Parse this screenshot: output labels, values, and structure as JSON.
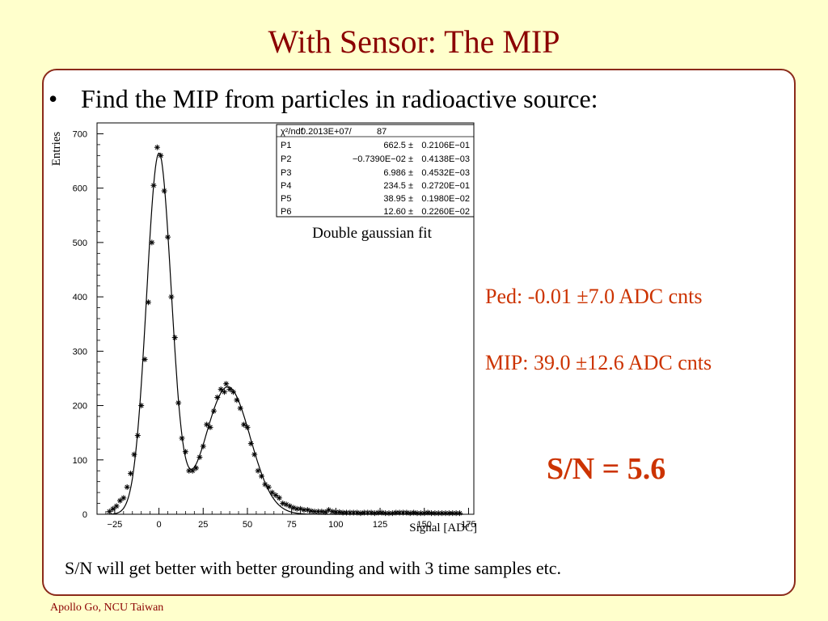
{
  "slide": {
    "title": "With Sensor: The MIP",
    "bullet": "Find the MIP from particles in radioactive source:",
    "ped": "Ped:  -0.01 ±7.0 ADC cnts",
    "mip": "MIP: 39.0 ±12.6 ADC cnts",
    "sn": "S/N = 5.6",
    "note": "S/N will get better with better grounding  and with 3 time samples etc.",
    "footer": "Apollo Go, NCU Taiwan"
  },
  "chart_data": {
    "type": "scatter",
    "xlabel": "Signal [ADC]",
    "ylabel": "Entries",
    "xlim": [
      -35,
      178
    ],
    "ylim": [
      0,
      720
    ],
    "xticks": [
      -25,
      0,
      25,
      50,
      75,
      100,
      125,
      150,
      175
    ],
    "yticks": [
      0,
      100,
      200,
      300,
      400,
      500,
      600,
      700
    ],
    "annotation": "Double gaussian fit",
    "fit_box": {
      "header": [
        "χ²/ndf",
        "0.2013E+07/",
        "87"
      ],
      "rows": [
        {
          "name": "P1",
          "value": "662.5 ±",
          "error": "0.2106E−01"
        },
        {
          "name": "P2",
          "value": "−0.7390E−02 ±",
          "error": "0.4138E−03"
        },
        {
          "name": "P3",
          "value": "6.986 ±",
          "error": "0.4532E−03"
        },
        {
          "name": "P4",
          "value": "234.5 ±",
          "error": "0.2720E−01"
        },
        {
          "name": "P5",
          "value": "38.95 ±",
          "error": "0.1980E−02"
        },
        {
          "name": "P6",
          "value": "12.60 ±",
          "error": "0.2260E−02"
        }
      ]
    },
    "fit_params": {
      "p1": 662.5,
      "p2": -0.0074,
      "p3": 6.986,
      "p4": 234.5,
      "p5": 38.95,
      "p6": 12.6
    },
    "points": [
      [
        -28,
        5
      ],
      [
        -26,
        10
      ],
      [
        -24,
        15
      ],
      [
        -22,
        25
      ],
      [
        -20,
        30
      ],
      [
        -18,
        50
      ],
      [
        -16,
        75
      ],
      [
        -14,
        110
      ],
      [
        -12,
        145
      ],
      [
        -10,
        200
      ],
      [
        -8,
        285
      ],
      [
        -6,
        390
      ],
      [
        -4,
        500
      ],
      [
        -3,
        605
      ],
      [
        -1,
        675
      ],
      [
        1,
        660
      ],
      [
        3,
        595
      ],
      [
        5,
        510
      ],
      [
        7,
        400
      ],
      [
        9,
        325
      ],
      [
        11,
        205
      ],
      [
        13,
        140
      ],
      [
        15,
        115
      ],
      [
        17,
        80
      ],
      [
        19,
        80
      ],
      [
        21,
        85
      ],
      [
        23,
        105
      ],
      [
        25,
        125
      ],
      [
        27,
        165
      ],
      [
        29,
        160
      ],
      [
        31,
        190
      ],
      [
        33,
        215
      ],
      [
        35,
        230
      ],
      [
        37,
        225
      ],
      [
        38,
        240
      ],
      [
        40,
        230
      ],
      [
        42,
        225
      ],
      [
        44,
        210
      ],
      [
        46,
        195
      ],
      [
        48,
        165
      ],
      [
        50,
        160
      ],
      [
        52,
        130
      ],
      [
        54,
        110
      ],
      [
        56,
        80
      ],
      [
        58,
        70
      ],
      [
        60,
        55
      ],
      [
        62,
        50
      ],
      [
        64,
        40
      ],
      [
        66,
        35
      ],
      [
        68,
        30
      ],
      [
        70,
        20
      ],
      [
        72,
        18
      ],
      [
        74,
        15
      ],
      [
        76,
        12
      ],
      [
        78,
        10
      ],
      [
        80,
        10
      ],
      [
        82,
        8
      ],
      [
        84,
        8
      ],
      [
        86,
        6
      ],
      [
        88,
        5
      ],
      [
        90,
        5
      ],
      [
        92,
        5
      ],
      [
        94,
        4
      ],
      [
        96,
        8
      ],
      [
        98,
        5
      ],
      [
        100,
        4
      ],
      [
        102,
        4
      ],
      [
        104,
        3
      ],
      [
        106,
        3
      ],
      [
        108,
        3
      ],
      [
        110,
        3
      ],
      [
        112,
        3
      ],
      [
        114,
        2
      ],
      [
        116,
        3
      ],
      [
        118,
        3
      ],
      [
        120,
        3
      ],
      [
        122,
        2
      ],
      [
        124,
        3
      ],
      [
        126,
        3
      ],
      [
        128,
        2
      ],
      [
        130,
        2
      ],
      [
        132,
        2
      ],
      [
        134,
        3
      ],
      [
        136,
        3
      ],
      [
        138,
        3
      ],
      [
        140,
        3
      ],
      [
        142,
        2
      ],
      [
        144,
        3
      ],
      [
        146,
        2
      ],
      [
        148,
        2
      ],
      [
        150,
        2
      ],
      [
        152,
        3
      ],
      [
        154,
        2
      ],
      [
        156,
        2
      ],
      [
        158,
        2
      ],
      [
        160,
        2
      ],
      [
        162,
        2
      ],
      [
        164,
        2
      ],
      [
        166,
        2
      ],
      [
        168,
        2
      ],
      [
        170,
        2
      ]
    ]
  }
}
